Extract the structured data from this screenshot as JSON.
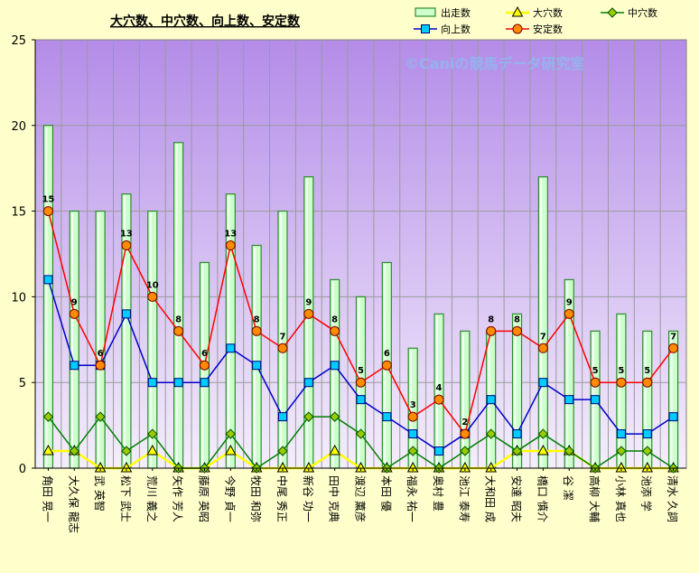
{
  "chart_data": {
    "type": "bar",
    "title": "大穴数、中穴数、向上数、安定数",
    "watermark": "©Caniの競馬データ研究室",
    "ylim": [
      0,
      25
    ],
    "yticks": [
      0,
      5,
      10,
      15,
      20,
      25
    ],
    "grid": true,
    "legend_position": "top-right",
    "categories": [
      "角田 晃一",
      "大久保 龍志",
      "武 英智",
      "松下 武士",
      "荒川 義之",
      "矢作 芳人",
      "藤原 英昭",
      "今野 貞一",
      "牧田 和弥",
      "中尾 秀正",
      "新谷 功一",
      "田中 克典",
      "渡辺 薫彦",
      "本田 優",
      "福永 祐一",
      "奥村 豊",
      "池江 泰寿",
      "大和田 成",
      "安達 昭夫",
      "橋口 慎介",
      "谷 潔",
      "高柳 大輔",
      "小林 真也",
      "池添 学",
      "清水 久詞"
    ],
    "series": [
      {
        "name": "出走数",
        "kind": "bar",
        "color": "#ccffcc",
        "stroke": "#2e8b2e",
        "values": [
          20,
          15,
          15,
          16,
          15,
          19,
          12,
          16,
          13,
          15,
          17,
          11,
          10,
          12,
          7,
          9,
          8,
          8,
          9,
          17,
          11,
          8,
          9,
          8,
          8
        ]
      },
      {
        "name": "大穴数",
        "kind": "line",
        "color": "#ffff00",
        "marker": "triangle",
        "values": [
          1,
          1,
          0,
          0,
          1,
          0,
          0,
          1,
          0,
          0,
          0,
          1,
          0,
          0,
          0,
          0,
          0,
          0,
          1,
          1,
          1,
          0,
          0,
          0,
          0
        ]
      },
      {
        "name": "中穴数",
        "kind": "line",
        "color": "#008000",
        "marker": "diamond",
        "values": [
          3,
          1,
          3,
          1,
          2,
          0,
          0,
          2,
          0,
          1,
          3,
          3,
          2,
          0,
          1,
          0,
          1,
          2,
          1,
          2,
          1,
          0,
          1,
          1,
          0
        ]
      },
      {
        "name": "向上数",
        "kind": "line",
        "color": "#0000cc",
        "marker": "square",
        "values": [
          11,
          6,
          6,
          9,
          5,
          5,
          5,
          7,
          6,
          3,
          5,
          6,
          4,
          3,
          2,
          1,
          2,
          4,
          2,
          5,
          4,
          4,
          2,
          2,
          3
        ]
      },
      {
        "name": "安定数",
        "kind": "line",
        "color": "#ff0000",
        "marker": "circle",
        "values": [
          15,
          9,
          6,
          13,
          10,
          8,
          6,
          13,
          8,
          7,
          9,
          8,
          5,
          6,
          3,
          4,
          2,
          8,
          8,
          7,
          9,
          5,
          5,
          5,
          7
        ]
      }
    ],
    "data_labels": [
      "15",
      "9",
      "6",
      "13",
      "10",
      "8",
      "6",
      "13",
      "8",
      "7",
      "9",
      "8",
      "5",
      "6",
      "3",
      "4",
      "2",
      "8",
      "8",
      "7",
      "9",
      "5",
      "5",
      "5",
      "7"
    ]
  }
}
